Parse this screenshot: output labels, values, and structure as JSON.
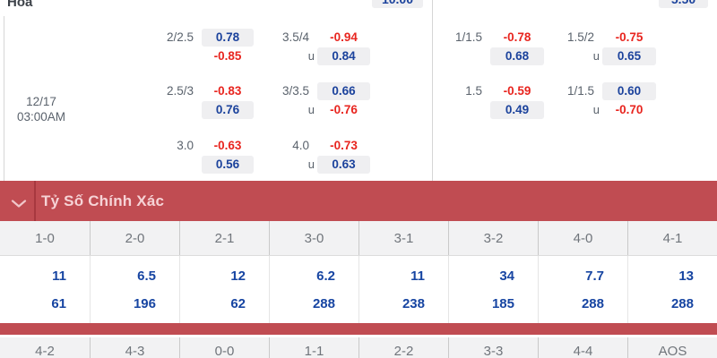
{
  "top_bar": {
    "corner_label": "Hòa",
    "partial_odds": [
      "10.00",
      "5.50"
    ]
  },
  "match": {
    "date": "12/17",
    "time": "03:00AM"
  },
  "odds_panels": {
    "left": {
      "rows": [
        [
          {
            "line": "2/2.5",
            "top": "0.78",
            "bottom": "-0.85",
            "prefix": ""
          },
          {
            "line": "3.5/4",
            "top": "-0.94",
            "bottom": "0.84",
            "prefix": "u"
          }
        ],
        [
          {
            "line": "2.5/3",
            "top": "-0.83",
            "bottom": "0.76",
            "prefix": ""
          },
          {
            "line": "3/3.5",
            "top": "0.66",
            "bottom": "-0.76",
            "prefix": "u"
          }
        ],
        [
          {
            "line": "3.0",
            "top": "-0.63",
            "bottom": "0.56",
            "prefix": ""
          },
          {
            "line": "4.0",
            "top": "-0.73",
            "bottom": "0.63",
            "prefix": "u"
          }
        ]
      ]
    },
    "right": {
      "rows": [
        [
          {
            "line": "1/1.5",
            "top": "-0.78",
            "bottom": "0.68",
            "prefix": ""
          },
          {
            "line": "1.5/2",
            "top": "-0.75",
            "bottom": "0.65",
            "prefix": "u"
          }
        ],
        [
          {
            "line": "1.5",
            "top": "-0.59",
            "bottom": "0.49",
            "prefix": ""
          },
          {
            "line": "1/1.5",
            "top": "0.60",
            "bottom": "-0.70",
            "prefix": "u"
          }
        ]
      ]
    }
  },
  "section": {
    "title": "Tỷ Số Chính Xác",
    "chevron_icon": "chevron-down"
  },
  "correct_score": {
    "group1": {
      "headers": [
        "1-0",
        "2-0",
        "2-1",
        "3-0",
        "3-1",
        "3-2",
        "4-0",
        "4-1"
      ],
      "odds_row_a": [
        "11",
        "6.5",
        "12",
        "6.2",
        "11",
        "34",
        "7.7",
        "13"
      ],
      "odds_row_b": [
        "61",
        "196",
        "62",
        "288",
        "238",
        "185",
        "288",
        "288"
      ]
    },
    "group2": {
      "headers": [
        "4-2",
        "4-3",
        "0-0",
        "1-1",
        "2-2",
        "3-3",
        "4-4",
        "AOS"
      ]
    }
  },
  "colors": {
    "accent_red_bar": "#c04c52",
    "odds_positive_blue": "#1b429c",
    "odds_negative_red": "#e8251f",
    "score_odds_blue": "#1745a2"
  }
}
